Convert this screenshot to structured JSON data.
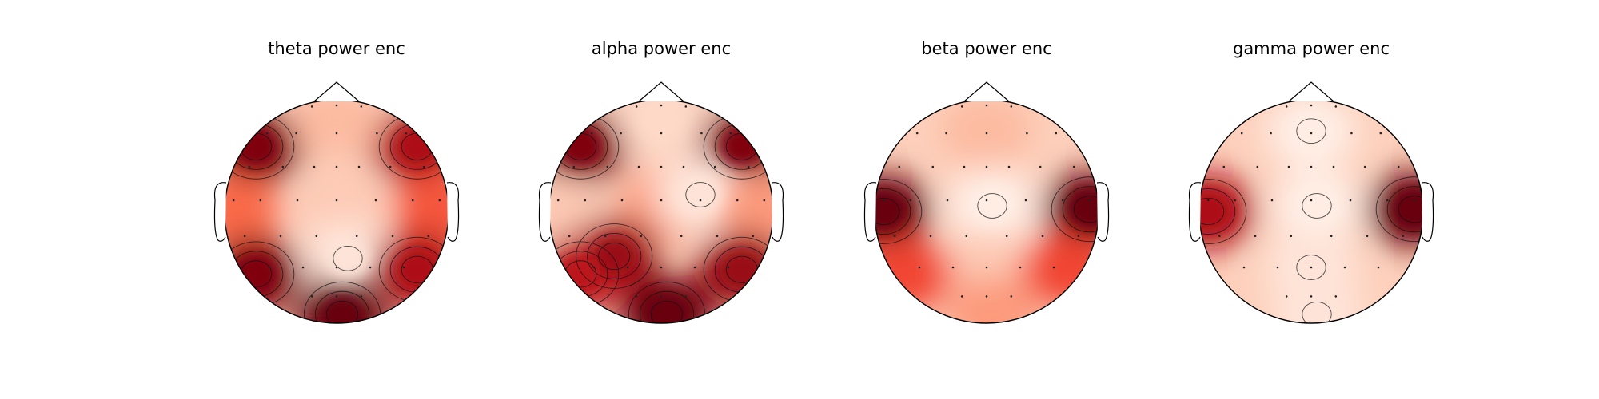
{
  "chart_data": [
    {
      "type": "heatmap",
      "subtype": "topomap",
      "title": "theta power enc",
      "colormap": "Reds",
      "contours": true,
      "sensors_shown": true,
      "regions": [
        {
          "location": "front-left",
          "level": 0.95
        },
        {
          "location": "front-right",
          "level": 0.85
        },
        {
          "location": "front-midline",
          "level": 0.25
        },
        {
          "location": "central",
          "level": 0.2
        },
        {
          "location": "centro-parietal",
          "level": 0.1
        },
        {
          "location": "left-temporal",
          "level": 0.5
        },
        {
          "location": "right-temporal",
          "level": 0.55
        },
        {
          "location": "lower-left",
          "level": 0.95
        },
        {
          "location": "lower-right",
          "level": 0.85
        },
        {
          "location": "occipital",
          "level": 1.0
        }
      ]
    },
    {
      "type": "heatmap",
      "subtype": "topomap",
      "title": "alpha power enc",
      "colormap": "Reds",
      "contours": true,
      "sensors_shown": true,
      "regions": [
        {
          "location": "front-left",
          "level": 0.95
        },
        {
          "location": "front-right",
          "level": 0.95
        },
        {
          "location": "front-midline",
          "level": 0.15
        },
        {
          "location": "central",
          "level": 0.35
        },
        {
          "location": "right-central",
          "level": 0.1
        },
        {
          "location": "left-temporal",
          "level": 0.2
        },
        {
          "location": "right-temporal",
          "level": 0.35
        },
        {
          "location": "left-parietal",
          "level": 0.9
        },
        {
          "location": "lower-left",
          "level": 0.8
        },
        {
          "location": "lower-right",
          "level": 0.9
        },
        {
          "location": "occipital",
          "level": 1.0
        }
      ]
    },
    {
      "type": "heatmap",
      "subtype": "topomap",
      "title": "beta power enc",
      "colormap": "Reds",
      "contours": true,
      "sensors_shown": true,
      "regions": [
        {
          "location": "left-temporal",
          "level": 1.0
        },
        {
          "location": "right-temporal",
          "level": 1.0
        },
        {
          "location": "frontal",
          "level": 0.25
        },
        {
          "location": "central",
          "level": 0.05
        },
        {
          "location": "parietal",
          "level": 0.2
        },
        {
          "location": "lower-left",
          "level": 0.6
        },
        {
          "location": "lower-right",
          "level": 0.6
        },
        {
          "location": "occipital",
          "level": 0.35
        }
      ]
    },
    {
      "type": "heatmap",
      "subtype": "topomap",
      "title": "gamma power enc",
      "colormap": "Reds",
      "contours": true,
      "sensors_shown": true,
      "regions": [
        {
          "location": "left-temporal",
          "level": 0.85
        },
        {
          "location": "right-temporal",
          "level": 1.0
        },
        {
          "location": "frontal",
          "level": 0.05
        },
        {
          "location": "central",
          "level": 0.05
        },
        {
          "location": "parietal",
          "level": 0.1
        },
        {
          "location": "occipital",
          "level": 0.1
        }
      ]
    }
  ]
}
